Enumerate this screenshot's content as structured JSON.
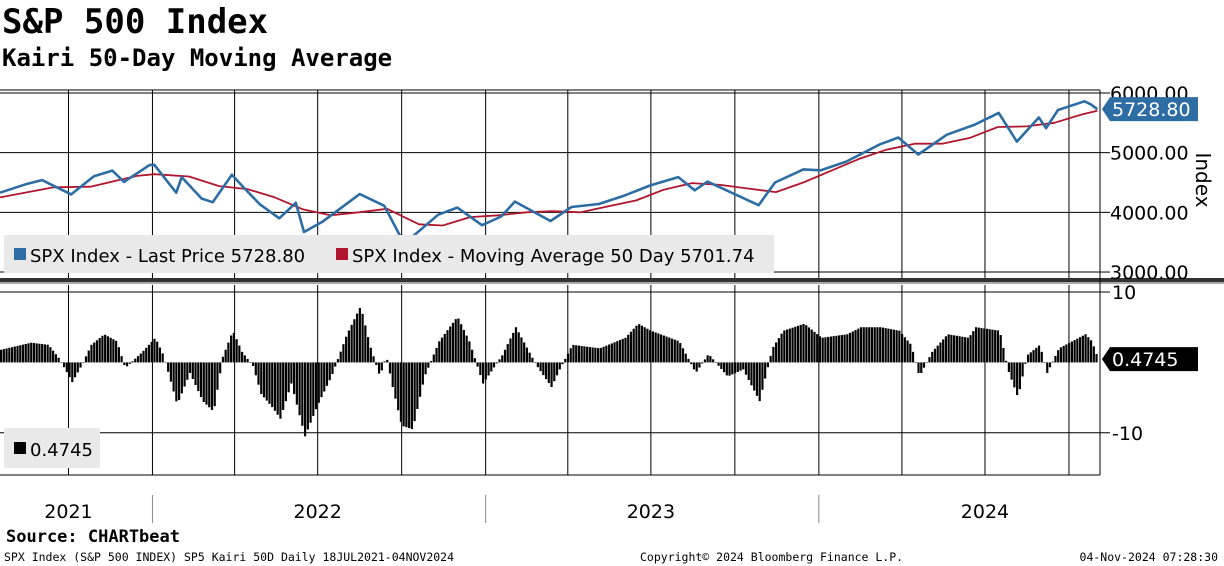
{
  "header": {
    "title": "S&P 500 Index",
    "subtitle": "Kairi 50-Day Moving Average"
  },
  "footer": {
    "source": "Source: CHARTbeat",
    "info": "SPX Index (S&P 500 INDEX) SP5 Kairi 50D  Daily 18JUL2021-04NOV2024",
    "copyright": "Copyright© 2024 Bloomberg Finance L.P.",
    "timestamp": "04-Nov-2024 07:28:30"
  },
  "colors": {
    "price": "#2e6da4",
    "ma": "#b0172e",
    "bars": "#000000",
    "grid": "#000000",
    "price_tag": "#2e6da4"
  },
  "chart_data": [
    {
      "type": "line",
      "title": "S&P 500 Index",
      "ylabel": "Index",
      "ylim": [
        2900,
        6050
      ],
      "y_ticks": [
        3000,
        4000,
        5000,
        6000
      ],
      "y_tick_labels": [
        "3000.00",
        "4000.00",
        "5000.00",
        "6000.00"
      ],
      "x_range": [
        "18JUL2021",
        "04NOV2024"
      ],
      "x_labels": [
        "2021",
        "2022",
        "2023",
        "2024"
      ],
      "series": [
        {
          "name": "SPX Index - Last Price",
          "legend": "SPX Index - Last Price 5728.80",
          "last": "5728.80",
          "color": "#2e6da4",
          "points": [
            [
              "2021-07-18",
              4330
            ],
            [
              "2021-08-15",
              4470
            ],
            [
              "2021-09-02",
              4540
            ],
            [
              "2021-10-04",
              4300
            ],
            [
              "2021-10-29",
              4605
            ],
            [
              "2021-11-18",
              4700
            ],
            [
              "2021-12-01",
              4510
            ],
            [
              "2021-12-29",
              4795
            ],
            [
              "2022-01-03",
              4796
            ],
            [
              "2022-01-27",
              4330
            ],
            [
              "2022-02-02",
              4590
            ],
            [
              "2022-02-24",
              4230
            ],
            [
              "2022-03-08",
              4170
            ],
            [
              "2022-03-29",
              4630
            ],
            [
              "2022-04-12",
              4400
            ],
            [
              "2022-04-29",
              4130
            ],
            [
              "2022-05-20",
              3900
            ],
            [
              "2022-06-07",
              4160
            ],
            [
              "2022-06-16",
              3670
            ],
            [
              "2022-07-06",
              3840
            ],
            [
              "2022-08-16",
              4305
            ],
            [
              "2022-09-12",
              4110
            ],
            [
              "2022-09-30",
              3585
            ],
            [
              "2022-10-12",
              3580
            ],
            [
              "2022-11-10",
              3960
            ],
            [
              "2022-12-01",
              4080
            ],
            [
              "2022-12-28",
              3785
            ],
            [
              "2023-01-18",
              3930
            ],
            [
              "2023-02-02",
              4180
            ],
            [
              "2023-03-13",
              3855
            ],
            [
              "2023-04-05",
              4090
            ],
            [
              "2023-05-05",
              4140
            ],
            [
              "2023-06-02",
              4280
            ],
            [
              "2023-06-30",
              4450
            ],
            [
              "2023-07-31",
              4590
            ],
            [
              "2023-08-18",
              4370
            ],
            [
              "2023-09-01",
              4515
            ],
            [
              "2023-10-27",
              4120
            ],
            [
              "2023-11-14",
              4500
            ],
            [
              "2023-12-15",
              4720
            ],
            [
              "2024-01-03",
              4705
            ],
            [
              "2024-01-31",
              4850
            ],
            [
              "2024-03-08",
              5140
            ],
            [
              "2024-03-28",
              5254
            ],
            [
              "2024-04-19",
              4970
            ],
            [
              "2024-05-20",
              5300
            ],
            [
              "2024-06-20",
              5470
            ],
            [
              "2024-07-16",
              5667
            ],
            [
              "2024-08-05",
              5186
            ],
            [
              "2024-08-29",
              5590
            ],
            [
              "2024-09-06",
              5410
            ],
            [
              "2024-09-19",
              5715
            ],
            [
              "2024-10-18",
              5860
            ],
            [
              "2024-10-25",
              5808
            ],
            [
              "2024-11-01",
              5728.8
            ]
          ]
        },
        {
          "name": "SPX Index - Moving Average 50 Day",
          "legend": "SPX Index - Moving Average 50 Day 5701.74",
          "last": "5701.74",
          "color": "#b0172e",
          "points": [
            [
              "2021-07-18",
              4250
            ],
            [
              "2021-09-15",
              4420
            ],
            [
              "2021-10-25",
              4430
            ],
            [
              "2021-12-15",
              4610
            ],
            [
              "2022-01-03",
              4640
            ],
            [
              "2022-02-10",
              4600
            ],
            [
              "2022-03-15",
              4440
            ],
            [
              "2022-04-15",
              4390
            ],
            [
              "2022-05-15",
              4250
            ],
            [
              "2022-06-15",
              4050
            ],
            [
              "2022-07-15",
              3950
            ],
            [
              "2022-08-15",
              4000
            ],
            [
              "2022-09-15",
              4060
            ],
            [
              "2022-10-20",
              3800
            ],
            [
              "2022-11-15",
              3780
            ],
            [
              "2022-12-15",
              3920
            ],
            [
              "2023-01-15",
              3950
            ],
            [
              "2023-02-15",
              4000
            ],
            [
              "2023-03-15",
              4020
            ],
            [
              "2023-04-15",
              4000
            ],
            [
              "2023-05-15",
              4100
            ],
            [
              "2023-06-15",
              4200
            ],
            [
              "2023-07-15",
              4380
            ],
            [
              "2023-08-15",
              4490
            ],
            [
              "2023-09-15",
              4460
            ],
            [
              "2023-10-15",
              4400
            ],
            [
              "2023-11-15",
              4340
            ],
            [
              "2023-12-15",
              4500
            ],
            [
              "2024-01-15",
              4700
            ],
            [
              "2024-02-15",
              4900
            ],
            [
              "2024-03-15",
              5050
            ],
            [
              "2024-04-15",
              5150
            ],
            [
              "2024-05-15",
              5150
            ],
            [
              "2024-06-15",
              5250
            ],
            [
              "2024-07-15",
              5430
            ],
            [
              "2024-08-15",
              5440
            ],
            [
              "2024-09-15",
              5500
            ],
            [
              "2024-10-15",
              5640
            ],
            [
              "2024-11-01",
              5701.74
            ]
          ]
        }
      ]
    },
    {
      "type": "bar",
      "title": "Kairi 50-Day Moving Average",
      "ylim": [
        -16,
        11
      ],
      "y_ticks": [
        10,
        -10
      ],
      "y_tick_labels": [
        "10",
        "-10"
      ],
      "legend": "0.4745",
      "last": "0.4745",
      "series": [
        {
          "name": "Kairi 50D",
          "points": [
            [
              "2021-07-18",
              1.8
            ],
            [
              "2021-08-20",
              2.8
            ],
            [
              "2021-09-08",
              2.5
            ],
            [
              "2021-09-20",
              0.5
            ],
            [
              "2021-10-04",
              -2.8
            ],
            [
              "2021-10-14",
              -0.5
            ],
            [
              "2021-10-25",
              2.5
            ],
            [
              "2021-11-08",
              4.0
            ],
            [
              "2021-11-22",
              3.0
            ],
            [
              "2021-12-01",
              -0.8
            ],
            [
              "2021-12-20",
              1.5
            ],
            [
              "2022-01-03",
              3.5
            ],
            [
              "2022-01-12",
              1.0
            ],
            [
              "2022-01-27",
              -6.0
            ],
            [
              "2022-02-10",
              -1.5
            ],
            [
              "2022-02-24",
              -5.5
            ],
            [
              "2022-03-08",
              -7.0
            ],
            [
              "2022-03-18",
              0.8
            ],
            [
              "2022-03-29",
              4.5
            ],
            [
              "2022-04-08",
              1.5
            ],
            [
              "2022-04-20",
              -0.5
            ],
            [
              "2022-04-29",
              -4.5
            ],
            [
              "2022-05-12",
              -6.5
            ],
            [
              "2022-05-20",
              -8.0
            ],
            [
              "2022-06-01",
              -3.0
            ],
            [
              "2022-06-16",
              -10.5
            ],
            [
              "2022-06-30",
              -6.0
            ],
            [
              "2022-07-15",
              -2.0
            ],
            [
              "2022-08-01",
              4.0
            ],
            [
              "2022-08-16",
              8.0
            ],
            [
              "2022-08-26",
              2.5
            ],
            [
              "2022-09-06",
              -2.0
            ],
            [
              "2022-09-13",
              1.0
            ],
            [
              "2022-09-20",
              -3.5
            ],
            [
              "2022-09-30",
              -9.0
            ],
            [
              "2022-10-12",
              -9.5
            ],
            [
              "2022-10-25",
              -2.0
            ],
            [
              "2022-11-10",
              3.0
            ],
            [
              "2022-11-30",
              6.5
            ],
            [
              "2022-12-13",
              3.0
            ],
            [
              "2022-12-28",
              -3.0
            ],
            [
              "2023-01-18",
              1.0
            ],
            [
              "2023-02-02",
              5.0
            ],
            [
              "2023-02-24",
              -0.3
            ],
            [
              "2023-03-13",
              -3.5
            ],
            [
              "2023-03-22",
              -1.0
            ],
            [
              "2023-04-05",
              2.5
            ],
            [
              "2023-05-05",
              2.0
            ],
            [
              "2023-06-02",
              3.5
            ],
            [
              "2023-06-16",
              5.5
            ],
            [
              "2023-06-30",
              4.5
            ],
            [
              "2023-07-31",
              3.0
            ],
            [
              "2023-08-18",
              -1.5
            ],
            [
              "2023-09-01",
              1.2
            ],
            [
              "2023-09-22",
              -2.0
            ],
            [
              "2023-10-09",
              -1.0
            ],
            [
              "2023-10-27",
              -5.5
            ],
            [
              "2023-11-10",
              2.0
            ],
            [
              "2023-11-22",
              4.5
            ],
            [
              "2023-12-15",
              5.5
            ],
            [
              "2024-01-03",
              3.5
            ],
            [
              "2024-01-31",
              4.0
            ],
            [
              "2024-02-15",
              5.0
            ],
            [
              "2024-03-08",
              5.0
            ],
            [
              "2024-03-28",
              4.5
            ],
            [
              "2024-04-10",
              2.5
            ],
            [
              "2024-04-19",
              -2.0
            ],
            [
              "2024-05-03",
              1.5
            ],
            [
              "2024-05-20",
              4.0
            ],
            [
              "2024-06-12",
              3.5
            ],
            [
              "2024-06-20",
              5.0
            ],
            [
              "2024-07-16",
              4.5
            ],
            [
              "2024-07-25",
              -1.0
            ],
            [
              "2024-08-05",
              -5.0
            ],
            [
              "2024-08-15",
              1.0
            ],
            [
              "2024-08-29",
              2.5
            ],
            [
              "2024-09-06",
              -1.5
            ],
            [
              "2024-09-19",
              2.0
            ],
            [
              "2024-10-18",
              4.0
            ],
            [
              "2024-10-25",
              3.0
            ],
            [
              "2024-11-01",
              0.4745
            ]
          ]
        }
      ]
    }
  ]
}
